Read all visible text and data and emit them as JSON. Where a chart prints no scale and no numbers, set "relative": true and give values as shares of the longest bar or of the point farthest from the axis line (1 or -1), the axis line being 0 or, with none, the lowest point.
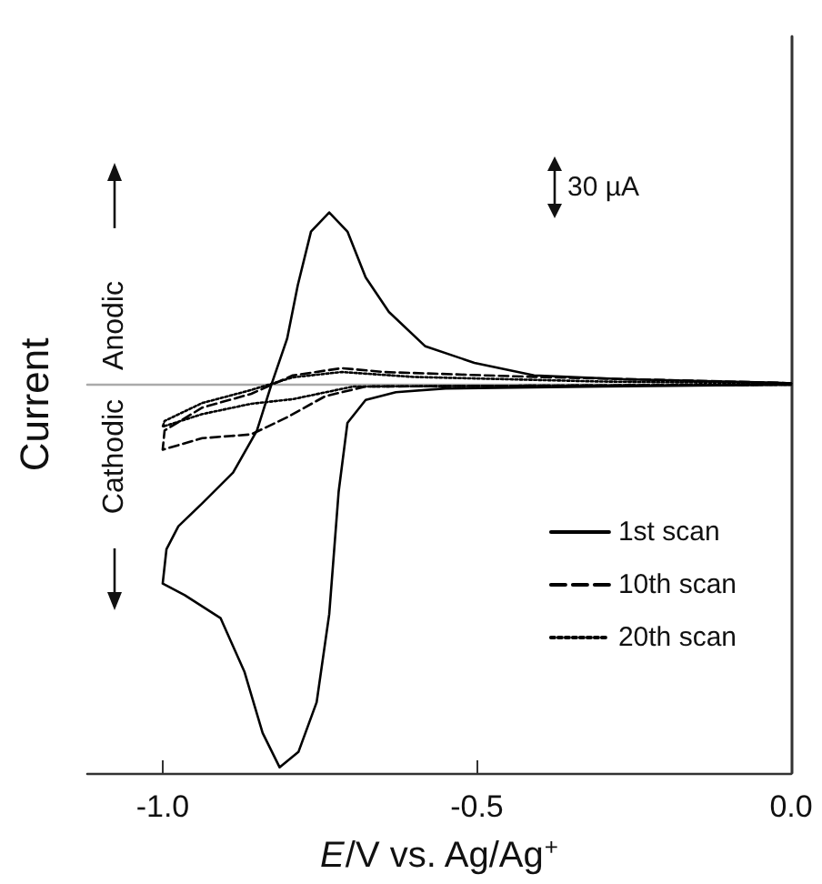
{
  "chart_data": {
    "type": "line",
    "relative": true,
    "xlabel": "E/V vs. Ag/Ag$^{+}$",
    "ylabel": "Current",
    "xlim": [
      -1.12,
      0.0
    ],
    "xticks": [
      {
        "value": -1.0,
        "label": "-1.0"
      },
      -0.5,
      {
        "value": 0.0,
        "label": "0.0"
      }
    ],
    "annotations": [
      "30 µA",
      "Anodic",
      "Cathodic"
    ],
    "legend": "bottom right",
    "marker": "none",
    "grid": false,
    "series": [
      {
        "name": "1st scan",
        "color": "#000000",
        "line_style": "solid",
        "x": [
          0,
          -0.3,
          -0.55,
          -0.629,
          -0.677,
          -0.706,
          -0.72,
          -0.735,
          -0.755,
          -0.784,
          -0.814,
          -0.841,
          -0.87,
          -0.908,
          -0.965,
          -1.0,
          -0.994,
          -0.975,
          -0.937,
          -0.888,
          -0.85,
          -0.827,
          -0.802,
          -0.785,
          -0.764,
          -0.735,
          -0.706,
          -0.677,
          -0.64,
          -0.582,
          -0.504,
          -0.409,
          -0.265,
          -0.023,
          0
        ],
        "values": [
          0,
          -0.005,
          -0.01,
          -0.02,
          -0.04,
          -0.1,
          -0.28,
          -0.6,
          -0.83,
          -0.96,
          -1.0,
          -0.91,
          -0.75,
          -0.61,
          -0.55,
          -0.52,
          -0.43,
          -0.37,
          -0.31,
          -0.23,
          -0.12,
          0,
          0.12,
          0.26,
          0.4,
          0.45,
          0.4,
          0.28,
          0.19,
          0.1,
          0.057,
          0.024,
          0.014,
          0.005,
          0.003
        ]
      },
      {
        "name": "10th scan",
        "color": "#000000",
        "line_style": "dashed",
        "x": [
          0,
          -0.3,
          -0.677,
          -0.741,
          -0.803,
          -0.859,
          -0.937,
          -1.0,
          -0.997,
          -0.937,
          -0.859,
          -0.793,
          -0.715,
          -0.648,
          -0.409,
          -0.023,
          0
        ],
        "values": [
          0,
          -0.002,
          -0.005,
          -0.03,
          -0.086,
          -0.13,
          -0.14,
          -0.17,
          -0.12,
          -0.06,
          -0.024,
          0.024,
          0.043,
          0.033,
          0.02,
          0.005,
          0.003
        ]
      },
      {
        "name": "20th scan",
        "color": "#000000",
        "line_style": "dotted",
        "x": [
          0,
          -0.3,
          -0.697,
          -0.793,
          -0.859,
          -0.937,
          -1.0,
          -0.997,
          -0.937,
          -0.859,
          -0.793,
          -0.715,
          -0.6,
          -0.3,
          0
        ],
        "values": [
          0,
          -0.002,
          -0.005,
          -0.038,
          -0.05,
          -0.077,
          -0.11,
          -0.095,
          -0.048,
          -0.014,
          0.019,
          0.033,
          0.02,
          0.008,
          0.003
        ]
      }
    ]
  }
}
